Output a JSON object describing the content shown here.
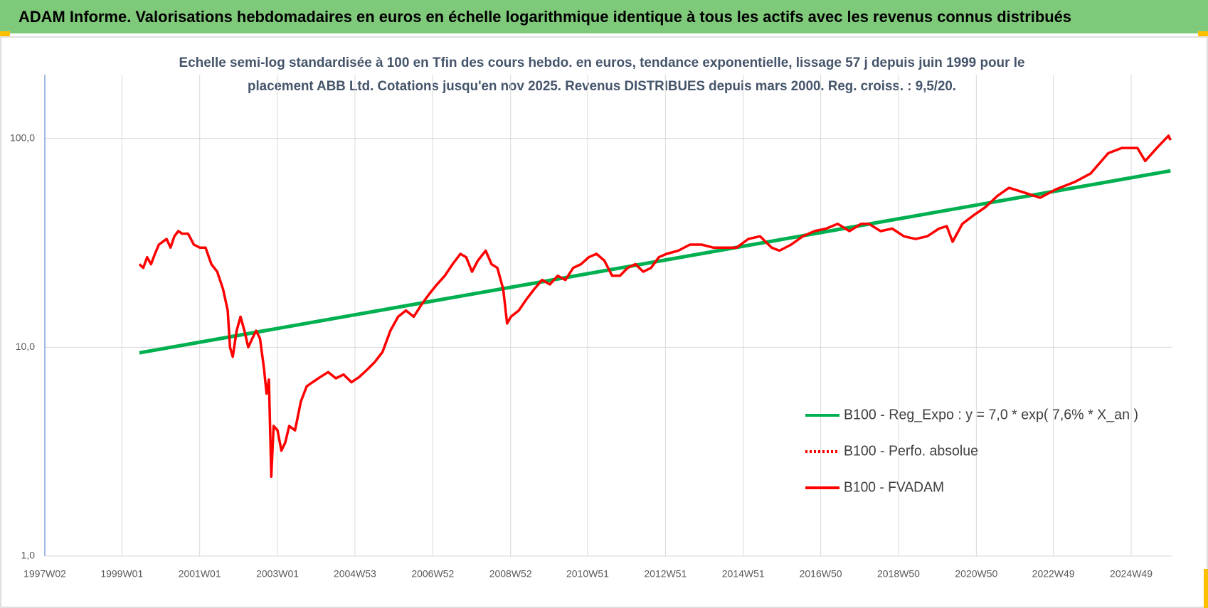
{
  "chart_data": {
    "type": "line",
    "title": "ADAM Informe. Valorisations hebdomadaires en euros en échelle logarithmique identique à tous les actifs avec les revenus connus distribués",
    "subtitle": [
      "Echelle semi-log standardisée à 100 en Tfin des cours hebdo. en euros, tendance exponentielle, lissage 57 j depuis juin 1999 pour le",
      "placement ABB Ltd. Cotations jusqu'en nov 2025. Revenus DISTRIBUES depuis mars 2000. Reg. croiss. : 9,5/20."
    ],
    "log_scale": true,
    "grid": true,
    "legend": "right",
    "xlim": [
      1997.02,
      2026.0
    ],
    "xticks": [
      {
        "value": 1997.02,
        "label": "1997W02"
      },
      {
        "value": 1999.0,
        "label": "1999W01"
      },
      {
        "value": 2001.0,
        "label": "2001W01"
      },
      {
        "value": 2003.0,
        "label": "2003W01"
      },
      {
        "value": 2004.99,
        "label": "2004W53"
      },
      {
        "value": 2006.99,
        "label": "2006W52"
      },
      {
        "value": 2008.99,
        "label": "2008W52"
      },
      {
        "value": 2010.97,
        "label": "2010W51"
      },
      {
        "value": 2012.97,
        "label": "2012W51"
      },
      {
        "value": 2014.97,
        "label": "2014W51"
      },
      {
        "value": 2016.96,
        "label": "2016W50"
      },
      {
        "value": 2018.96,
        "label": "2018W50"
      },
      {
        "value": 2020.96,
        "label": "2020W50"
      },
      {
        "value": 2022.94,
        "label": "2022W49"
      },
      {
        "value": 2024.94,
        "label": "2024W49"
      }
    ],
    "ylim": [
      1,
      202
    ],
    "yticks": [
      {
        "value": 1,
        "label": "1,0"
      },
      {
        "value": 10,
        "label": "10,0"
      },
      {
        "value": 100,
        "label": "100,0"
      }
    ],
    "series": [
      {
        "name": "B100 - Reg_Expo : y = 7,0 * exp( 7,6% *  X_an )",
        "color": "#00b050",
        "style": "solid",
        "x": [
          1999.45,
          2025.95
        ],
        "values": [
          9.4,
          70
        ]
      },
      {
        "name": "B100 - Perfo. absolue",
        "color": "#ff0000",
        "style": "dotted",
        "x": [],
        "values": []
      },
      {
        "name": "B100 - FVADAM",
        "color": "#ff0000",
        "style": "solid",
        "x": [
          1999.45,
          1999.55,
          1999.65,
          1999.75,
          1999.85,
          1999.95,
          2000.05,
          2000.15,
          2000.25,
          2000.35,
          2000.45,
          2000.55,
          2000.7,
          2000.85,
          2001.0,
          2001.15,
          2001.3,
          2001.45,
          2001.6,
          2001.72,
          2001.78,
          2001.85,
          2001.95,
          2002.05,
          2002.15,
          2002.25,
          2002.35,
          2002.45,
          2002.55,
          2002.65,
          2002.72,
          2002.78,
          2002.84,
          2002.9,
          2003.0,
          2003.1,
          2003.2,
          2003.3,
          2003.45,
          2003.6,
          2003.75,
          2003.9,
          2004.1,
          2004.3,
          2004.5,
          2004.7,
          2004.9,
          2005.1,
          2005.3,
          2005.5,
          2005.7,
          2005.9,
          2006.1,
          2006.3,
          2006.5,
          2006.7,
          2006.9,
          2007.1,
          2007.3,
          2007.5,
          2007.7,
          2007.85,
          2008.0,
          2008.15,
          2008.35,
          2008.5,
          2008.65,
          2008.8,
          2008.9,
          2009.0,
          2009.2,
          2009.4,
          2009.6,
          2009.8,
          2010.0,
          2010.2,
          2010.4,
          2010.6,
          2010.8,
          2011.0,
          2011.2,
          2011.4,
          2011.6,
          2011.8,
          2012.0,
          2012.2,
          2012.4,
          2012.6,
          2012.8,
          2013.0,
          2013.3,
          2013.6,
          2013.9,
          2014.2,
          2014.5,
          2014.8,
          2015.1,
          2015.4,
          2015.7,
          2015.9,
          2016.2,
          2016.5,
          2016.8,
          2017.1,
          2017.4,
          2017.7,
          2018.0,
          2018.2,
          2018.5,
          2018.8,
          2019.1,
          2019.4,
          2019.7,
          2020.0,
          2020.2,
          2020.35,
          2020.6,
          2020.9,
          2021.2,
          2021.5,
          2021.8,
          2022.2,
          2022.6,
          2023.0,
          2023.5,
          2023.9,
          2024.35,
          2024.7,
          2025.1,
          2025.3,
          2025.6,
          2025.9,
          2025.95
        ],
        "values": [
          25,
          24,
          27,
          25,
          28,
          31,
          32,
          33,
          30,
          34,
          36,
          35,
          35,
          31,
          30,
          30,
          25,
          23,
          19,
          15,
          10,
          9,
          12,
          14,
          12,
          10,
          11,
          12,
          11,
          8,
          6,
          7,
          2.4,
          4.2,
          4,
          3.2,
          3.5,
          4.2,
          4,
          5.5,
          6.5,
          6.8,
          7.2,
          7.6,
          7.1,
          7.4,
          6.8,
          7.2,
          7.8,
          8.5,
          9.5,
          12,
          14,
          15,
          14,
          16,
          18,
          20,
          22,
          25,
          28,
          27,
          23,
          26,
          29,
          25,
          24,
          19,
          13,
          14,
          15,
          17,
          19,
          21,
          20,
          22,
          21,
          24,
          25,
          27,
          28,
          26,
          22,
          22,
          24,
          25,
          23,
          24,
          27,
          28,
          29,
          31,
          31,
          30,
          30,
          30,
          33,
          34,
          30,
          29,
          31,
          34,
          36,
          37,
          39,
          36,
          39,
          39,
          36,
          37,
          34,
          33,
          34,
          37,
          38,
          32,
          39,
          43,
          47,
          53,
          58,
          55,
          52,
          57,
          62,
          68,
          85,
          90,
          90,
          78,
          90,
          103,
          98
        ]
      }
    ]
  }
}
